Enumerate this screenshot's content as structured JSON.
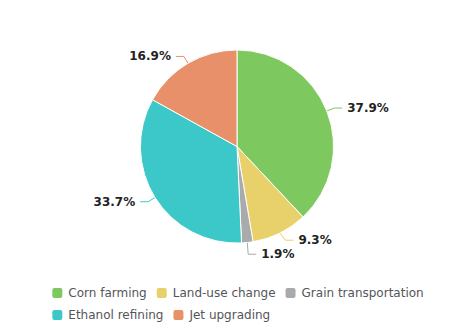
{
  "chart_data": {
    "type": "pie",
    "categories": [
      "Corn farming",
      "Land-use change",
      "Grain transportation",
      "Ethanol refining",
      "Jet upgrading"
    ],
    "values": [
      37.9,
      9.3,
      1.9,
      33.7,
      16.9
    ],
    "value_labels": [
      "37.9%",
      "9.3%",
      "1.9%",
      "33.7%",
      "16.9%"
    ],
    "colors": [
      "#7ec860",
      "#e8d06a",
      "#aaaaaa",
      "#3cc8c8",
      "#e8906a"
    ],
    "data_labels": true,
    "legend": "bottom"
  }
}
